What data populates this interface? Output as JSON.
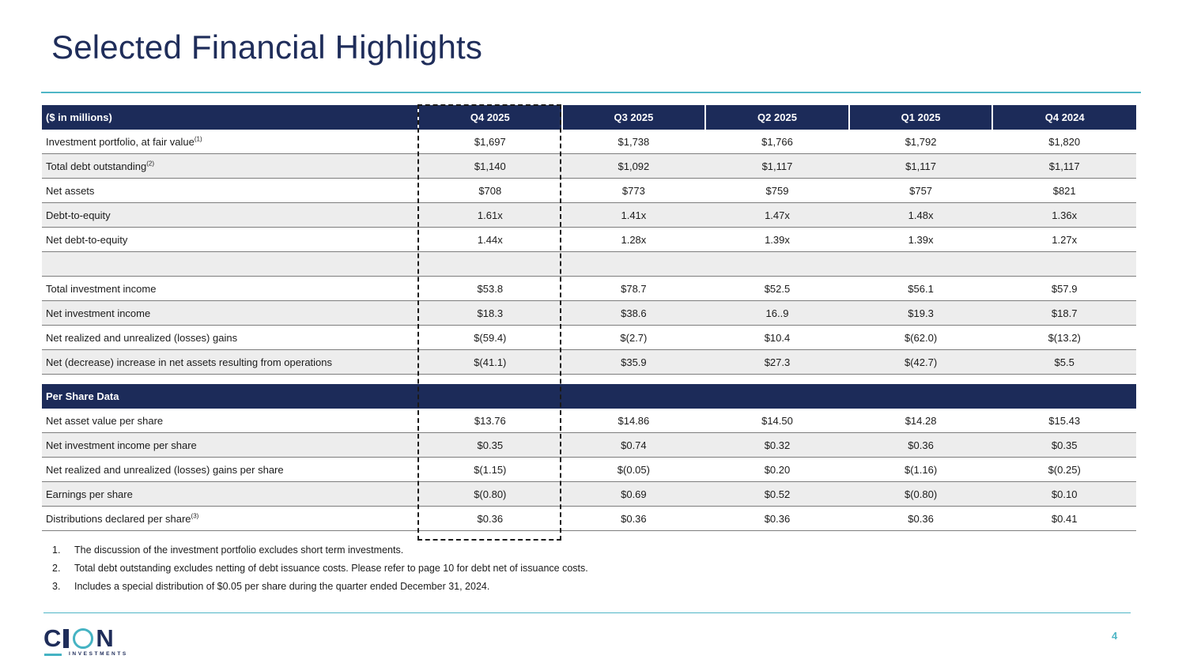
{
  "title": "Selected Financial Highlights",
  "table": {
    "header_label": "($ in millions)",
    "columns": [
      "Q4 2025",
      "Q3 2025",
      "Q2 2025",
      "Q1 2025",
      "Q4 2024"
    ],
    "rows": [
      {
        "label": "Investment portfolio, at fair value",
        "note": "(1)",
        "values": [
          "$1,697",
          "$1,738",
          "$1,766",
          "$1,792",
          "$1,820"
        ]
      },
      {
        "label": "Total debt outstanding",
        "note": "(2)",
        "values": [
          "$1,140",
          "$1,092",
          "$1,117",
          "$1,117",
          "$1,117"
        ]
      },
      {
        "label": "Net assets",
        "note": "",
        "values": [
          "$708",
          "$773",
          "$759",
          "$757",
          "$821"
        ]
      },
      {
        "label": "Debt-to-equity",
        "note": "",
        "values": [
          "1.61x",
          "1.41x",
          "1.47x",
          "1.48x",
          "1.36x"
        ]
      },
      {
        "label": "Net debt-to-equity",
        "note": "",
        "values": [
          "1.44x",
          "1.28x",
          "1.39x",
          "1.39x",
          "1.27x"
        ]
      },
      {
        "label": "",
        "note": "",
        "values": [
          "",
          "",
          "",
          "",
          ""
        ]
      },
      {
        "label": "Total investment income",
        "note": "",
        "values": [
          "$53.8",
          "$78.7",
          "$52.5",
          "$56.1",
          "$57.9"
        ]
      },
      {
        "label": "Net investment income",
        "note": "",
        "values": [
          "$18.3",
          "$38.6",
          "16..9",
          "$19.3",
          "$18.7"
        ]
      },
      {
        "label": "Net realized and unrealized (losses) gains",
        "note": "",
        "values": [
          "$(59.4)",
          "$(2.7)",
          "$10.4",
          "$(62.0)",
          "$(13.2)"
        ]
      },
      {
        "label": "Net (decrease) increase in net assets resulting from operations",
        "note": "",
        "values": [
          "$(41.1)",
          "$35.9",
          "$27.3",
          "$(42.7)",
          "$5.5"
        ]
      }
    ],
    "section_label": "Per Share Data",
    "per_share_rows": [
      {
        "label": "Net asset value per share",
        "note": "",
        "values": [
          "$13.76",
          "$14.86",
          "$14.50",
          "$14.28",
          "$15.43"
        ]
      },
      {
        "label": "Net investment income per share",
        "note": "",
        "values": [
          "$0.35",
          "$0.74",
          "$0.32",
          "$0.36",
          "$0.35"
        ]
      },
      {
        "label": "Net realized and unrealized (losses) gains per share",
        "note": "",
        "values": [
          "$(1.15)",
          "$(0.05)",
          "$0.20",
          "$(1.16)",
          "$(0.25)"
        ]
      },
      {
        "label": "Earnings per share",
        "note": "",
        "values": [
          "$(0.80)",
          "$0.69",
          "$0.52",
          "$(0.80)",
          "$0.10"
        ]
      },
      {
        "label": "Distributions declared per share",
        "note": "(3)",
        "values": [
          "$0.36",
          "$0.36",
          "$0.36",
          "$0.36",
          "$0.41"
        ]
      }
    ]
  },
  "footnotes": [
    {
      "num": "1.",
      "text": "The discussion of the investment portfolio excludes short term investments."
    },
    {
      "num": "2.",
      "text": "Total debt outstanding excludes netting of debt issuance costs. Please refer to page 10 for debt net of issuance costs."
    },
    {
      "num": "3.",
      "text": "Includes a special distribution of $0.05 per share during the quarter ended December 31, 2024."
    }
  ],
  "logo": {
    "left": "C",
    "right": "N",
    "subtitle": "INVESTMENTS"
  },
  "page_number": "4",
  "colors": {
    "navy": "#1c2b59",
    "teal": "#4fb6c6",
    "row_alt": "#ededed"
  }
}
